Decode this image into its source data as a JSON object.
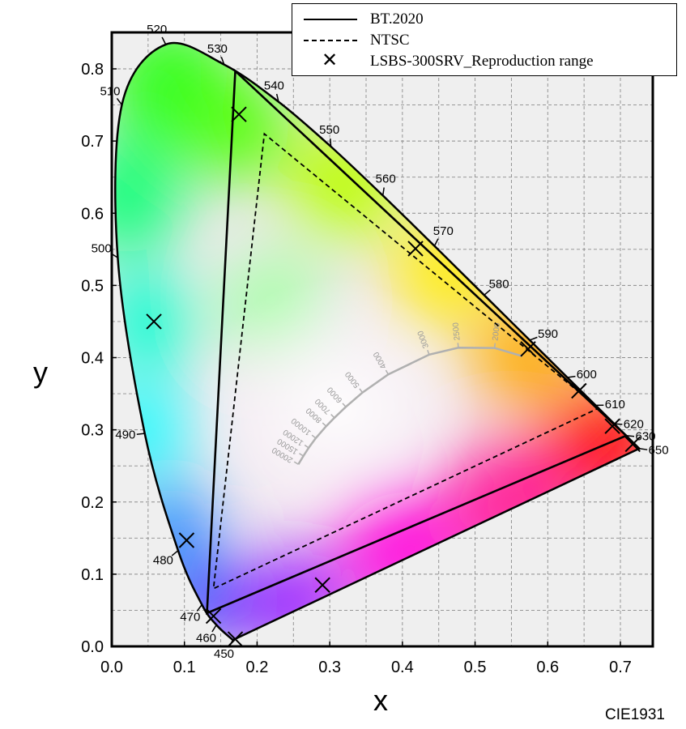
{
  "footer": "CIE1931",
  "chart_data": {
    "type": "scatter",
    "xlabel": "x",
    "ylabel": "y",
    "xlim": [
      0.0,
      0.75
    ],
    "ylim": [
      0.0,
      0.85
    ],
    "xticks": [
      "0.0",
      "0.1",
      "0.2",
      "0.3",
      "0.4",
      "0.5",
      "0.6",
      "0.7"
    ],
    "yticks": [
      "0.0",
      "0.1",
      "0.2",
      "0.3",
      "0.4",
      "0.5",
      "0.6",
      "0.7",
      "0.8"
    ],
    "grid": true,
    "legend_position": "top-right",
    "spectral_locus": [
      {
        "nm": "450",
        "x": 0.1666,
        "y": 0.0089
      },
      {
        "nm": "460",
        "x": 0.144,
        "y": 0.0297
      },
      {
        "nm": "470",
        "x": 0.1241,
        "y": 0.0578
      },
      {
        "nm": "480",
        "x": 0.0913,
        "y": 0.1327
      },
      {
        "nm": "490",
        "x": 0.0454,
        "y": 0.295
      },
      {
        "nm": "500",
        "x": 0.0082,
        "y": 0.5384
      },
      {
        "nm": "510",
        "x": 0.0139,
        "y": 0.7502
      },
      {
        "nm": "520",
        "x": 0.0743,
        "y": 0.8338
      },
      {
        "nm": "530",
        "x": 0.1547,
        "y": 0.8059
      },
      {
        "nm": "540",
        "x": 0.2296,
        "y": 0.7543
      },
      {
        "nm": "550",
        "x": 0.3016,
        "y": 0.6923
      },
      {
        "nm": "560",
        "x": 0.3731,
        "y": 0.6245
      },
      {
        "nm": "570",
        "x": 0.4441,
        "y": 0.5547
      },
      {
        "nm": "580",
        "x": 0.5125,
        "y": 0.4866
      },
      {
        "nm": "590",
        "x": 0.5752,
        "y": 0.4242
      },
      {
        "nm": "600",
        "x": 0.627,
        "y": 0.3725
      },
      {
        "nm": "610",
        "x": 0.6658,
        "y": 0.334
      },
      {
        "nm": "620",
        "x": 0.6915,
        "y": 0.3083
      },
      {
        "nm": "630",
        "x": 0.7079,
        "y": 0.292
      },
      {
        "nm": "650",
        "x": 0.726,
        "y": 0.274
      }
    ],
    "planckian_locus": {
      "color": "#b0b0b0",
      "points": [
        {
          "label": "20000",
          "x": 0.2568,
          "y": 0.2522
        },
        {
          "label": "15000",
          "x": 0.2637,
          "y": 0.2637
        },
        {
          "label": "12000",
          "x": 0.271,
          "y": 0.275
        },
        {
          "label": "10000",
          "x": 0.2807,
          "y": 0.2884
        },
        {
          "label": "8000",
          "x": 0.295,
          "y": 0.305
        },
        {
          "label": "7000",
          "x": 0.3064,
          "y": 0.3166
        },
        {
          "label": "6000",
          "x": 0.3221,
          "y": 0.3318
        },
        {
          "label": "5000",
          "x": 0.3451,
          "y": 0.3516
        },
        {
          "label": "4000",
          "x": 0.3805,
          "y": 0.3768
        },
        {
          "label": "3000",
          "x": 0.4369,
          "y": 0.4041
        },
        {
          "label": "2500",
          "x": 0.477,
          "y": 0.4137
        },
        {
          "label": "2000",
          "x": 0.5267,
          "y": 0.4133
        },
        {
          "label": "",
          "x": 0.565,
          "y": 0.402
        }
      ]
    },
    "series": [
      {
        "name": "BT.2020",
        "style": "solid",
        "points": [
          {
            "x": 0.708,
            "y": 0.292
          },
          {
            "x": 0.17,
            "y": 0.797
          },
          {
            "x": 0.131,
            "y": 0.046
          }
        ]
      },
      {
        "name": "NTSC",
        "style": "dashed",
        "points": [
          {
            "x": 0.67,
            "y": 0.33
          },
          {
            "x": 0.21,
            "y": 0.71
          },
          {
            "x": 0.14,
            "y": 0.08
          }
        ]
      },
      {
        "name": "LSBS-300SRV_Reproduction range",
        "style": "x-marker",
        "points": [
          {
            "x": 0.175,
            "y": 0.737
          },
          {
            "x": 0.418,
            "y": 0.551
          },
          {
            "x": 0.573,
            "y": 0.412
          },
          {
            "x": 0.643,
            "y": 0.354
          },
          {
            "x": 0.689,
            "y": 0.305
          },
          {
            "x": 0.717,
            "y": 0.28
          },
          {
            "x": 0.058,
            "y": 0.45
          },
          {
            "x": 0.103,
            "y": 0.147
          },
          {
            "x": 0.14,
            "y": 0.042
          },
          {
            "x": 0.17,
            "y": 0.01
          },
          {
            "x": 0.29,
            "y": 0.085
          }
        ]
      }
    ]
  }
}
